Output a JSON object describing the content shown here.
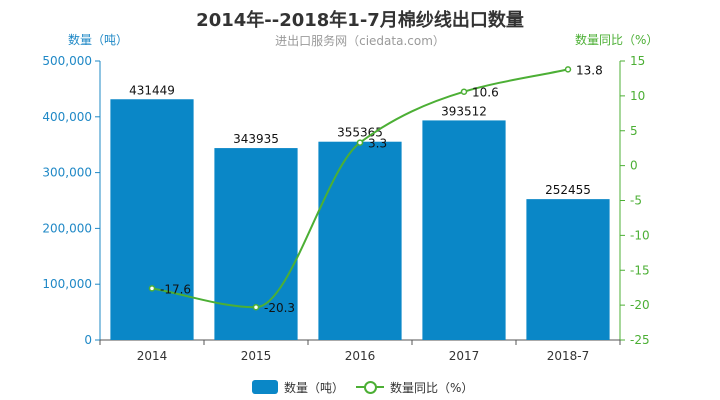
{
  "title": "2014年--2018年1-7月棉纱线出口数量",
  "subtitle": "进出口服务网（ciedata.com）",
  "ylabel_left": "数量（吨）",
  "ylabel_right": "数量同比（%）",
  "legend": [
    {
      "name": "数量（吨）"
    },
    {
      "name": "数量同比（%）"
    }
  ],
  "chart_data": {
    "type": "bar",
    "title": "2014年--2018年1-7月棉纱线出口数量",
    "subtitle": "进出口服务网（ciedata.com）",
    "categories": [
      "2014",
      "2015",
      "2016",
      "2017",
      "2018-7"
    ],
    "series": [
      {
        "name": "数量（吨）",
        "type": "bar",
        "axis": "left",
        "color": "#0a87c7",
        "values": [
          431449,
          343935,
          355365,
          393512,
          252455
        ]
      },
      {
        "name": "数量同比（%）",
        "type": "line",
        "axis": "right",
        "color": "#4caf35",
        "values": [
          -17.6,
          -20.3,
          3.3,
          10.6,
          13.8
        ]
      }
    ],
    "ylabel": "数量（吨）",
    "ylabel_right": "数量同比（%）",
    "ylim": [
      0,
      500000
    ],
    "ylim_right": [
      -25,
      15
    ],
    "yticks": [
      0,
      100000,
      200000,
      300000,
      400000,
      500000
    ],
    "ytick_labels": [
      "0",
      "100,000",
      "200,000",
      "300,000",
      "400,000",
      "500,000"
    ],
    "yticks_right": [
      -25,
      -20,
      -15,
      -10,
      -5,
      0,
      5,
      10,
      15
    ],
    "ytick_labels_right": [
      "-25",
      "-20",
      "-15",
      "-10",
      "-5",
      "0",
      "5",
      "10",
      "15"
    ],
    "grid": false,
    "legend_position": "bottom"
  }
}
